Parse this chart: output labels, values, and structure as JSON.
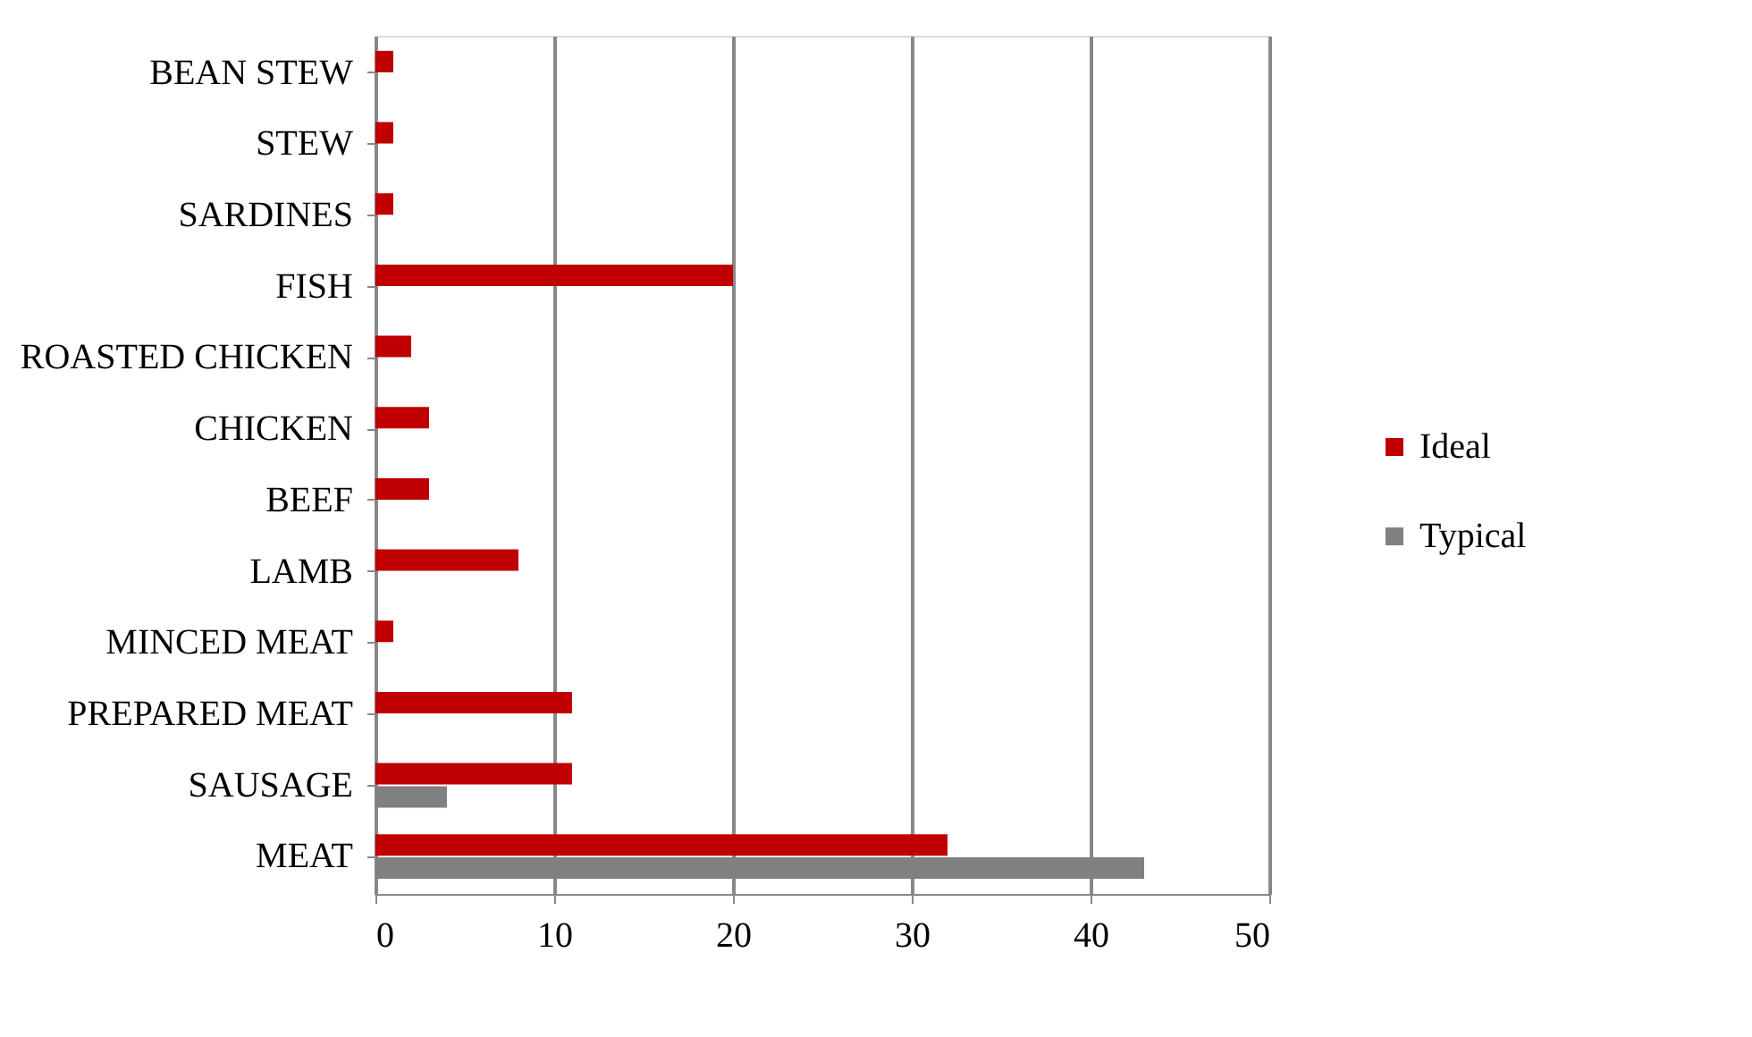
{
  "chart_data": {
    "type": "bar",
    "orientation": "horizontal",
    "categories": [
      "BEAN STEW",
      "STEW",
      "SARDINES",
      "FISH",
      "ROASTED CHICKEN",
      "CHICKEN",
      "BEEF",
      "LAMB",
      "MINCED MEAT",
      "PREPARED MEAT",
      "SAUSAGE",
      "MEAT"
    ],
    "series": [
      {
        "name": "Ideal",
        "color": "#c00000",
        "values": [
          1,
          1,
          1,
          20,
          2,
          3,
          3,
          8,
          1,
          11,
          11,
          32
        ]
      },
      {
        "name": "Typical",
        "color": "#808080",
        "values": [
          0,
          0,
          0,
          0,
          0,
          0,
          0,
          0,
          0,
          0,
          4,
          43
        ]
      }
    ],
    "xlim": [
      0,
      50
    ],
    "xticks": [
      0,
      10,
      20,
      30,
      40,
      50
    ],
    "grid": "x",
    "legend": "right"
  }
}
